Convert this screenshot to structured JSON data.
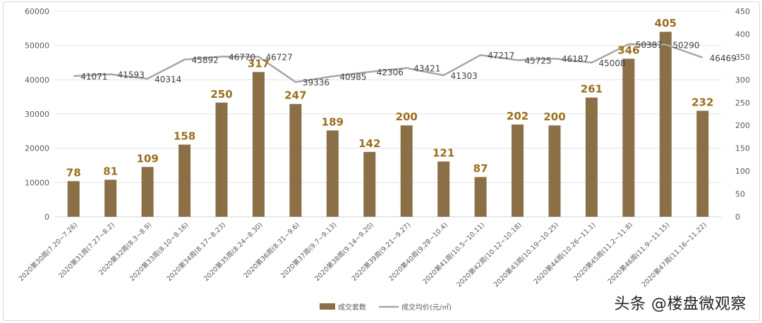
{
  "chart_data": {
    "type": "bar",
    "categories": [
      "2020第30周(7.20~7.26)",
      "2020第31周(7.27~8.2)",
      "2020第32周(8.3~8.9)",
      "2020第33周(8.10~8.16)",
      "2020第34周(8.17~8.23)",
      "2020第35周(8.24~8.30)",
      "2020第36周(8.31~9.6)",
      "2020第37周(9.7~9.13)",
      "2020第38周(9.14~9.20)",
      "2020第39周(9.21~9.27)",
      "2020第40周(9.28~10.4)",
      "2020第41周(10.5~10.11)",
      "2020第42周(10.12~10.18)",
      "2020第43周(10.19~10.25)",
      "2020第44周(10.26~11.1)",
      "2020第45周(11.2~11.8)",
      "2020第46周(11.9~11.15)",
      "2020第47周(11.16~11.22)"
    ],
    "series": [
      {
        "name": "成交套数",
        "type": "bar",
        "axis": "right",
        "color": "#8b6f47",
        "label_color": "#9a6f1c",
        "values": [
          78,
          81,
          109,
          158,
          250,
          317,
          247,
          189,
          142,
          200,
          121,
          87,
          202,
          200,
          261,
          346,
          405,
          232
        ]
      },
      {
        "name": "成交均价(元/㎡)",
        "type": "line",
        "axis": "left",
        "color": "#a6a6a6",
        "values": [
          41071,
          41593,
          40314,
          45892,
          46770,
          46727,
          39336,
          40985,
          42306,
          43421,
          41303,
          47217,
          45725,
          46187,
          45008,
          50387,
          50290,
          46469
        ]
      }
    ],
    "y_left": {
      "min": 0,
      "max": 60000,
      "ticks": [
        0,
        10000,
        20000,
        30000,
        40000,
        50000,
        60000
      ]
    },
    "y_right": {
      "min": 0,
      "max": 450,
      "ticks": [
        0,
        50,
        100,
        150,
        200,
        250,
        300,
        350,
        400,
        450
      ]
    },
    "grid": true,
    "legend_position": "bottom"
  },
  "watermark": "头条 @楼盘微观察"
}
